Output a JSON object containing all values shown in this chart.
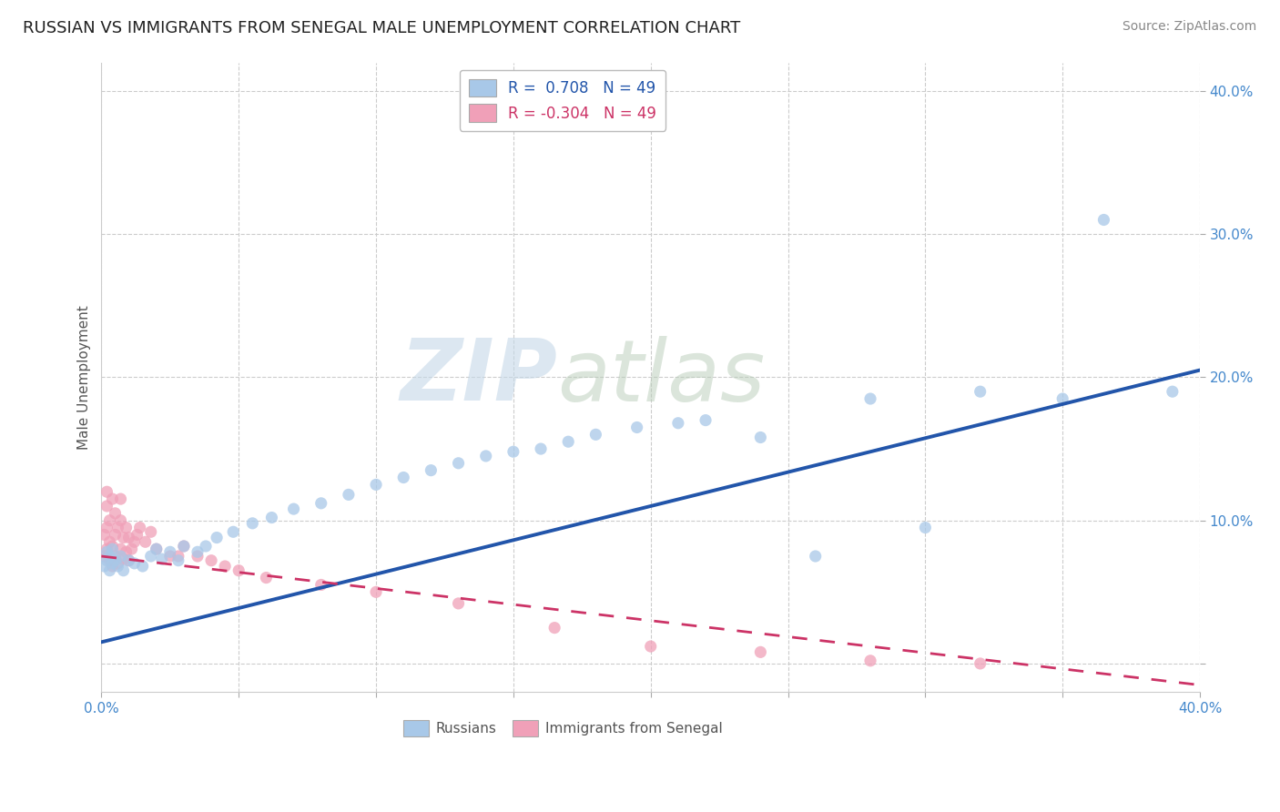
{
  "title": "RUSSIAN VS IMMIGRANTS FROM SENEGAL MALE UNEMPLOYMENT CORRELATION CHART",
  "source": "Source: ZipAtlas.com",
  "ylabel": "Male Unemployment",
  "r_russian": 0.708,
  "n_russian": 49,
  "r_senegal": -0.304,
  "n_senegal": 49,
  "xlim": [
    0.0,
    0.4
  ],
  "ylim": [
    -0.02,
    0.42
  ],
  "blue_color": "#a8c8e8",
  "pink_color": "#f0a0b8",
  "blue_line_color": "#2255aa",
  "pink_line_color": "#cc3366",
  "watermark_color": "#dde8f0",
  "russian_x": [
    0.001,
    0.002,
    0.002,
    0.003,
    0.003,
    0.004,
    0.004,
    0.005,
    0.006,
    0.007,
    0.008,
    0.01,
    0.012,
    0.015,
    0.018,
    0.02,
    0.022,
    0.025,
    0.028,
    0.03,
    0.035,
    0.038,
    0.042,
    0.048,
    0.055,
    0.062,
    0.07,
    0.08,
    0.09,
    0.1,
    0.11,
    0.12,
    0.13,
    0.14,
    0.15,
    0.16,
    0.17,
    0.18,
    0.195,
    0.21,
    0.22,
    0.24,
    0.26,
    0.28,
    0.3,
    0.32,
    0.35,
    0.365,
    0.39
  ],
  "russian_y": [
    0.068,
    0.072,
    0.078,
    0.065,
    0.075,
    0.07,
    0.08,
    0.072,
    0.068,
    0.075,
    0.065,
    0.072,
    0.07,
    0.068,
    0.075,
    0.08,
    0.073,
    0.078,
    0.072,
    0.082,
    0.078,
    0.082,
    0.088,
    0.092,
    0.098,
    0.102,
    0.108,
    0.112,
    0.118,
    0.125,
    0.13,
    0.135,
    0.14,
    0.145,
    0.148,
    0.15,
    0.155,
    0.16,
    0.165,
    0.168,
    0.17,
    0.158,
    0.075,
    0.185,
    0.095,
    0.19,
    0.185,
    0.31,
    0.19
  ],
  "senegal_x": [
    0.001,
    0.001,
    0.002,
    0.002,
    0.002,
    0.003,
    0.003,
    0.003,
    0.004,
    0.004,
    0.004,
    0.005,
    0.005,
    0.005,
    0.006,
    0.006,
    0.007,
    0.007,
    0.007,
    0.008,
    0.008,
    0.009,
    0.009,
    0.01,
    0.01,
    0.011,
    0.012,
    0.013,
    0.014,
    0.016,
    0.018,
    0.02,
    0.025,
    0.028,
    0.03,
    0.035,
    0.04,
    0.045,
    0.05,
    0.06,
    0.08,
    0.1,
    0.13,
    0.165,
    0.2,
    0.24,
    0.28,
    0.32,
    0.002
  ],
  "senegal_y": [
    0.075,
    0.09,
    0.08,
    0.095,
    0.11,
    0.072,
    0.085,
    0.1,
    0.068,
    0.082,
    0.115,
    0.075,
    0.09,
    0.105,
    0.07,
    0.095,
    0.08,
    0.1,
    0.115,
    0.073,
    0.088,
    0.078,
    0.095,
    0.072,
    0.088,
    0.08,
    0.085,
    0.09,
    0.095,
    0.085,
    0.092,
    0.08,
    0.075,
    0.075,
    0.082,
    0.075,
    0.072,
    0.068,
    0.065,
    0.06,
    0.055,
    0.05,
    0.042,
    0.025,
    0.012,
    0.008,
    0.002,
    0.0,
    0.12
  ],
  "blue_trendline": [
    0.0,
    0.4,
    0.015,
    0.205
  ],
  "pink_trendline": [
    0.0,
    0.4,
    0.075,
    -0.015
  ]
}
